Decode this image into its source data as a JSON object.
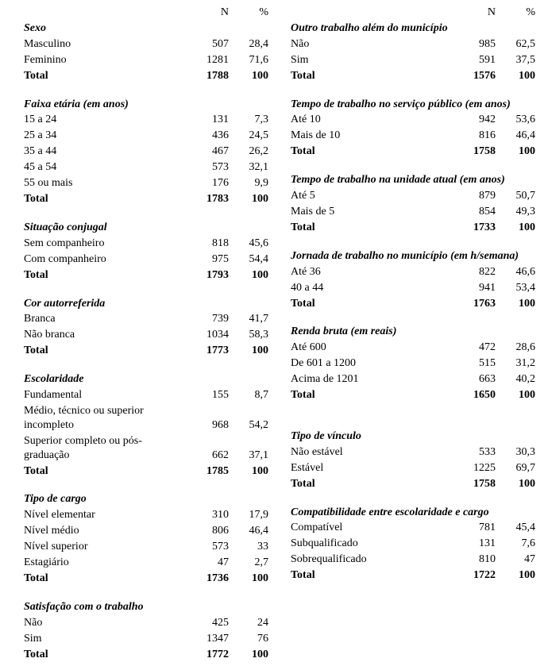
{
  "header": {
    "n_label": "N",
    "pct_label": "%"
  },
  "total_label": "Total",
  "pct_100": "100",
  "left": [
    {
      "title": "Sexo",
      "rows": [
        {
          "label": "Masculino",
          "n": "507",
          "p": "28,4"
        },
        {
          "label": "Feminino",
          "n": "1281",
          "p": "71,6"
        }
      ],
      "total_n": "1788"
    },
    {
      "title": "Faixa etária (em anos)",
      "rows": [
        {
          "label": "15 a 24",
          "n": "131",
          "p": "7,3"
        },
        {
          "label": "25 a 34",
          "n": "436",
          "p": "24,5"
        },
        {
          "label": "35 a 44",
          "n": "467",
          "p": "26,2"
        },
        {
          "label": "45 a 54",
          "n": "573",
          "p": "32,1"
        },
        {
          "label": "55 ou mais",
          "n": "176",
          "p": "9,9"
        }
      ],
      "total_n": "1783"
    },
    {
      "title": "Situação conjugal",
      "rows": [
        {
          "label": "Sem companheiro",
          "n": "818",
          "p": "45,6"
        },
        {
          "label": "Com companheiro",
          "n": "975",
          "p": "54,4"
        }
      ],
      "total_n": "1793"
    },
    {
      "title": "Cor autorreferida",
      "rows": [
        {
          "label": "Branca",
          "n": "739",
          "p": "41,7"
        },
        {
          "label": "Não branca",
          "n": "1034",
          "p": "58,3"
        }
      ],
      "total_n": "1773"
    },
    {
      "title": "Escolaridade",
      "rows": [
        {
          "label": "Fundamental",
          "n": "155",
          "p": "8,7"
        },
        {
          "label": "Médio, técnico ou  superior incompleto",
          "n": "968",
          "p": "54,2"
        },
        {
          "label": "Superior completo ou pós-graduação",
          "n": "662",
          "p": "37,1"
        }
      ],
      "total_n": "1785"
    },
    {
      "title": "Tipo de cargo",
      "rows": [
        {
          "label": "Nível elementar",
          "n": "310",
          "p": "17,9"
        },
        {
          "label": "Nível médio",
          "n": "806",
          "p": "46,4"
        },
        {
          "label": "Nível superior",
          "n": "573",
          "p": "33"
        },
        {
          "label": "Estagiário",
          "n": "47",
          "p": "2,7"
        }
      ],
      "total_n": "1736"
    },
    {
      "title": "Satisfação com o trabalho",
      "rows": [
        {
          "label": "Não",
          "n": "425",
          "p": "24"
        },
        {
          "label": "Sim",
          "n": "1347",
          "p": "76"
        }
      ],
      "total_n": "1772"
    }
  ],
  "right": [
    {
      "title": "Outro trabalho além do município",
      "rows": [
        {
          "label": "Não",
          "n": "985",
          "p": "62,5"
        },
        {
          "label": "Sim",
          "n": "591",
          "p": "37,5"
        }
      ],
      "total_n": "1576"
    },
    {
      "title": "Tempo de trabalho no serviço público (em anos)",
      "rows": [
        {
          "label": "Até 10",
          "n": "942",
          "p": "53,6"
        },
        {
          "label": "Mais de 10",
          "n": "816",
          "p": "46,4"
        }
      ],
      "total_n": "1758"
    },
    {
      "title": "Tempo de trabalho na unidade atual (em anos)",
      "rows": [
        {
          "label": "Até 5",
          "n": "879",
          "p": "50,7"
        },
        {
          "label": "Mais de 5",
          "n": "854",
          "p": "49,3"
        }
      ],
      "total_n": "1733"
    },
    {
      "title": "Jornada de trabalho no município (em h/semana)",
      "rows": [
        {
          "label": "Até 36",
          "n": "822",
          "p": "46,6"
        },
        {
          "label": "40 a 44",
          "n": "941",
          "p": "53,4"
        }
      ],
      "total_n": "1763"
    },
    {
      "title": "Renda bruta (em reais)",
      "rows": [
        {
          "label": "Até 600",
          "n": "472",
          "p": "28,6"
        },
        {
          "label": "De 601 a 1200",
          "n": "515",
          "p": "31,2"
        },
        {
          "label": "Acima de 1201",
          "n": "663",
          "p": "40,2"
        }
      ],
      "total_n": "1650",
      "extra_spacer_after": true
    },
    {
      "title": "Tipo de vínculo",
      "rows": [
        {
          "label": "Não estável",
          "n": "533",
          "p": "30,3"
        },
        {
          "label": "Estável",
          "n": "1225",
          "p": "69,7"
        }
      ],
      "total_n": "1758"
    },
    {
      "title": "Compatibilidade entre escolaridade e cargo",
      "rows": [
        {
          "label": "Compatível",
          "n": "781",
          "p": "45,4"
        },
        {
          "label": "Subqualificado",
          "n": "131",
          "p": "7,6"
        },
        {
          "label": "Sobrequalificado",
          "n": "810",
          "p": "47"
        }
      ],
      "total_n": "1722"
    }
  ],
  "footnote": ""
}
